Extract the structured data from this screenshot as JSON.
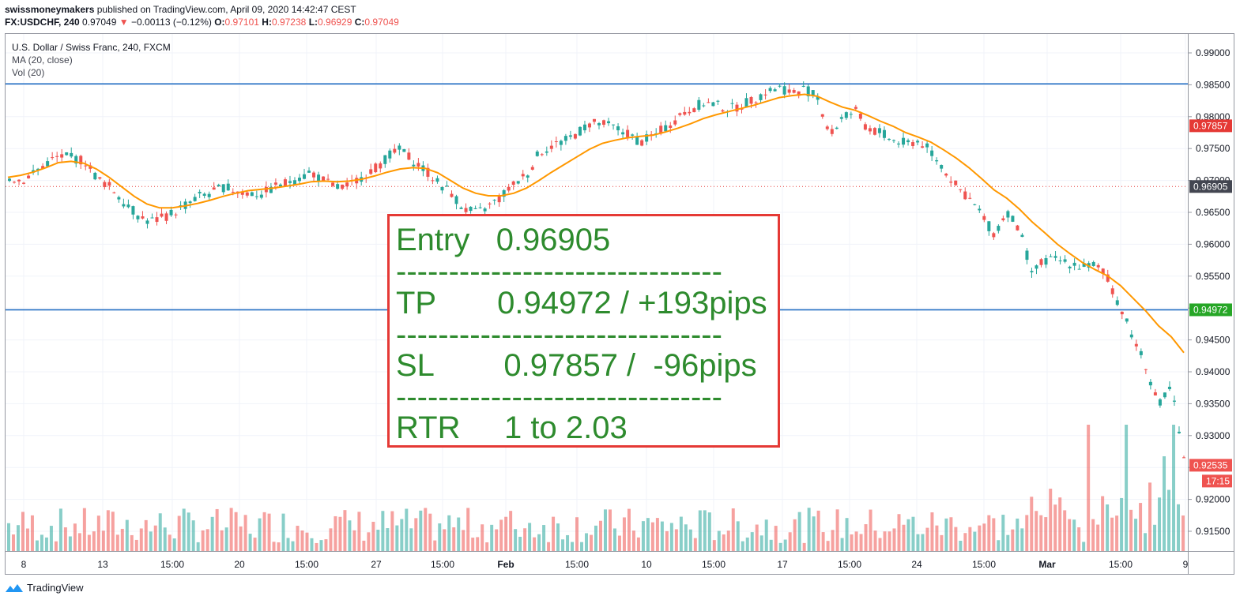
{
  "header": {
    "publisher": "swissmoneymakers",
    "published_text": "published on TradingView.com, April 09, 2020 14:42:47 CEST",
    "symbol": "FX:USDCHF, 240",
    "last": "0.97049",
    "change": "−0.00113 (−0.12%)",
    "o_label": "O:",
    "o": "0.97101",
    "h_label": "H:",
    "h": "0.97238",
    "l_label": "L:",
    "l": "0.96929",
    "c_label": "C:",
    "c": "0.97049"
  },
  "legend": {
    "title": "U.S. Dollar / Swiss Franc, 240, FXCM",
    "ma": "MA (20, close)",
    "vol": "Vol (20)"
  },
  "trade_box": {
    "entry": "Entry   0.96905",
    "sep1": "-------------------------------",
    "tp": "TP       0.94972 / +193pips",
    "sep2": "-------------------------------",
    "sl": "SL        0.97857 /  -96pips",
    "sep3": "-------------------------------",
    "rtr": "RTR     1 to 2.03"
  },
  "footer": {
    "brand": "TradingView"
  },
  "chart_data": {
    "type": "candlestick",
    "ylim": [
      0.9125,
      0.993
    ],
    "y_ticks": [
      "0.99000",
      "0.98500",
      "0.98000",
      "0.97500",
      "0.97000",
      "0.96500",
      "0.96000",
      "0.95500",
      "0.95000",
      "0.94500",
      "0.94000",
      "0.93500",
      "0.93000",
      "0.92500",
      "0.92000",
      "0.91500"
    ],
    "x_ticks": [
      "8",
      "13",
      "15:00",
      "20",
      "15:00",
      "27",
      "15:00",
      "Feb",
      "15:00",
      "10",
      "15:00",
      "17",
      "15:00",
      "24",
      "15:00",
      "Mar",
      "15:00",
      "9"
    ],
    "horizontal_lines": [
      {
        "value": 0.98515,
        "color": "#1565c0"
      },
      {
        "value": 0.94972,
        "color": "#1565c0"
      }
    ],
    "price_tags": [
      {
        "value": "0.97857",
        "color": "#e53935"
      },
      {
        "value": "0.96905",
        "color": "#434651"
      },
      {
        "value": "0.94972",
        "color": "#26a626"
      },
      {
        "value": "0.92535",
        "color": "#ef5350"
      },
      {
        "value": "17:15",
        "color": "#ef5350"
      }
    ],
    "last_price_line": 0.96905,
    "close_series": [
      0.9705,
      0.97,
      0.9712,
      0.9728,
      0.9738,
      0.9735,
      0.973,
      0.9702,
      0.969,
      0.9668,
      0.9648,
      0.9636,
      0.964,
      0.965,
      0.9662,
      0.9675,
      0.968,
      0.969,
      0.9683,
      0.968,
      0.9678,
      0.969,
      0.9697,
      0.9705,
      0.9712,
      0.9698,
      0.9688,
      0.9692,
      0.9708,
      0.972,
      0.9738,
      0.9748,
      0.973,
      0.9715,
      0.9695,
      0.968,
      0.9655,
      0.9648,
      0.966,
      0.9675,
      0.9695,
      0.971,
      0.9745,
      0.9755,
      0.9762,
      0.9775,
      0.979,
      0.9788,
      0.9782,
      0.9772,
      0.976,
      0.977,
      0.9784,
      0.98,
      0.9813,
      0.9822,
      0.9818,
      0.9812,
      0.9818,
      0.9828,
      0.984,
      0.9845,
      0.9838,
      0.9843,
      0.983,
      0.977,
      0.98,
      0.9808,
      0.978,
      0.9775,
      0.9762,
      0.9758,
      0.9762,
      0.9745,
      0.9718,
      0.969,
      0.9672,
      0.9645,
      0.9615,
      0.9652,
      0.962,
      0.9555,
      0.9575,
      0.9575,
      0.957,
      0.9565,
      0.9568,
      0.9545,
      0.95,
      0.9452,
      0.941,
      0.9345,
      0.9378,
      0.926
    ],
    "ma_series": [
      0.9705,
      0.9708,
      0.9713,
      0.972,
      0.9728,
      0.973,
      0.9727,
      0.9718,
      0.9705,
      0.969,
      0.9675,
      0.9663,
      0.9657,
      0.9657,
      0.966,
      0.9664,
      0.9669,
      0.9675,
      0.968,
      0.9684,
      0.9686,
      0.9688,
      0.9691,
      0.9694,
      0.9698,
      0.9699,
      0.9698,
      0.9699,
      0.9702,
      0.9707,
      0.9713,
      0.9718,
      0.972,
      0.9719,
      0.9712,
      0.97,
      0.9688,
      0.968,
      0.9676,
      0.9676,
      0.968,
      0.9688,
      0.97,
      0.9713,
      0.9725,
      0.9737,
      0.9749,
      0.9758,
      0.9763,
      0.9767,
      0.9769,
      0.9771,
      0.9776,
      0.9782,
      0.9789,
      0.9797,
      0.9803,
      0.9808,
      0.9813,
      0.9818,
      0.9824,
      0.983,
      0.9833,
      0.9835,
      0.9832,
      0.9823,
      0.9815,
      0.981,
      0.9802,
      0.9793,
      0.9785,
      0.9775,
      0.9768,
      0.976,
      0.9748,
      0.9735,
      0.972,
      0.9703,
      0.9685,
      0.9672,
      0.9655,
      0.9635,
      0.9618,
      0.96,
      0.9585,
      0.9571,
      0.956,
      0.955,
      0.9535,
      0.9515,
      0.9495,
      0.9472,
      0.9455,
      0.943
    ]
  },
  "colors": {
    "up": "#26a69a",
    "down": "#ef5350",
    "ma": "#ff9800",
    "hline": "#1565c0"
  }
}
